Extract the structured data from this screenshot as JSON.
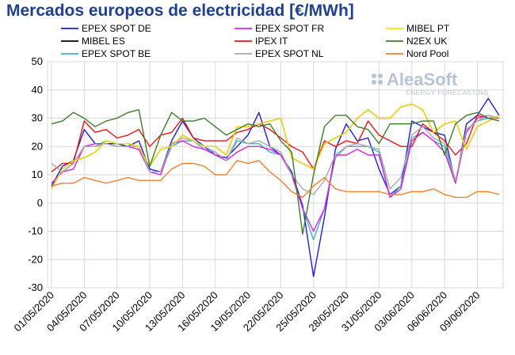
{
  "chart_data": {
    "type": "line",
    "title": "Mercados europeos de electricidad [€/MWh]",
    "xlabel": "",
    "ylabel": "",
    "ylim": [
      -30,
      50
    ],
    "yticks": [
      50,
      40,
      30,
      20,
      10,
      0,
      -10,
      -20,
      -30
    ],
    "grid": true,
    "legend_position": "top",
    "watermark": {
      "brand": "AleaSoft",
      "tagline": "ENERGY FORECASTING"
    },
    "x": [
      "01/05/2020",
      "02/05/2020",
      "03/05/2020",
      "04/05/2020",
      "05/05/2020",
      "06/05/2020",
      "07/05/2020",
      "08/05/2020",
      "09/05/2020",
      "10/05/2020",
      "11/05/2020",
      "12/05/2020",
      "13/05/2020",
      "14/05/2020",
      "15/05/2020",
      "16/05/2020",
      "17/05/2020",
      "18/05/2020",
      "19/05/2020",
      "20/05/2020",
      "21/05/2020",
      "22/05/2020",
      "23/05/2020",
      "24/05/2020",
      "25/05/2020",
      "26/05/2020",
      "27/05/2020",
      "28/05/2020",
      "29/05/2020",
      "30/05/2020",
      "31/05/2020",
      "01/06/2020",
      "02/06/2020",
      "03/06/2020",
      "04/06/2020",
      "05/06/2020",
      "06/06/2020",
      "07/06/2020",
      "08/06/2020",
      "09/06/2020",
      "10/06/2020",
      "11/06/2020"
    ],
    "xticks": [
      "01/05/2020",
      "04/05/2020",
      "07/05/2020",
      "10/05/2020",
      "13/05/2020",
      "16/05/2020",
      "19/05/2020",
      "22/05/2020",
      "25/05/2020",
      "28/05/2020",
      "31/05/2020",
      "03/06/2020",
      "06/06/2020",
      "09/06/2020"
    ],
    "series": [
      {
        "name": "EPEX SPOT DE",
        "color": "#1f1fd6",
        "values": [
          6,
          13,
          15,
          26,
          21,
          21,
          21,
          20,
          22,
          12,
          11,
          22,
          29,
          23,
          20,
          17,
          16,
          20,
          24,
          32,
          20,
          17,
          11,
          -1,
          -26,
          -5,
          19,
          28,
          22,
          23,
          12,
          3,
          6,
          29,
          27,
          25,
          24,
          7,
          28,
          31,
          37,
          31
        ]
      },
      {
        "name": "MIBEL ES",
        "color": "#000000",
        "values": [
          5,
          12,
          15,
          16,
          18,
          22,
          21,
          21,
          20,
          13,
          19,
          20,
          24,
          22,
          20,
          20,
          17,
          27,
          27,
          28,
          29,
          30,
          16,
          14,
          12,
          21,
          23,
          25,
          30,
          33,
          30,
          30,
          34,
          35,
          33,
          25,
          28,
          29,
          19,
          27,
          29,
          31
        ]
      },
      {
        "name": "EPEX SPOT BE",
        "color": "#3cb4c6",
        "values": [
          7,
          11,
          14,
          20,
          20,
          22,
          21,
          21,
          20,
          11,
          11,
          20,
          22,
          22,
          19,
          18,
          15,
          22,
          21,
          21,
          18,
          17,
          10,
          -2,
          -13,
          -2,
          16,
          20,
          20,
          20,
          18,
          2,
          6,
          23,
          25,
          22,
          20,
          7,
          26,
          29,
          30,
          30
        ]
      },
      {
        "name": "EPEX SPOT FR",
        "color": "#e020e0",
        "values": [
          7,
          11,
          12,
          20,
          21,
          21,
          20,
          20,
          19,
          11,
          10,
          21,
          22,
          20,
          19,
          17,
          15,
          18,
          20,
          20,
          19,
          17,
          10,
          -2,
          -10,
          -2,
          17,
          17,
          19,
          17,
          17,
          2,
          5,
          22,
          25,
          22,
          18,
          7,
          25,
          30,
          31,
          30
        ]
      },
      {
        "name": "IPEX IT",
        "color": "#e01818",
        "values": [
          11,
          14,
          14,
          29,
          25,
          26,
          23,
          24,
          26,
          20,
          24,
          25,
          30,
          23,
          22,
          22,
          22,
          25,
          26,
          28,
          26,
          23,
          20,
          18,
          12,
          22,
          20,
          22,
          21,
          29,
          24,
          22,
          20,
          20,
          28,
          25,
          22,
          17,
          21,
          31,
          30,
          30
        ]
      },
      {
        "name": "EPEX SPOT NL",
        "color": "#a8a8a8",
        "values": [
          14,
          11,
          14,
          20,
          20,
          21,
          20,
          20,
          20,
          11,
          11,
          21,
          23,
          22,
          20,
          18,
          15,
          23,
          21,
          22,
          20,
          18,
          10,
          5,
          3,
          8,
          17,
          20,
          21,
          20,
          19,
          5,
          9,
          24,
          27,
          23,
          21,
          8,
          26,
          29,
          31,
          30
        ]
      },
      {
        "name": "MIBEL PT",
        "color": "#ffe000",
        "values": [
          5,
          12,
          15,
          16,
          18,
          22,
          21,
          21,
          20,
          13,
          19,
          20,
          24,
          22,
          20,
          20,
          17,
          27,
          27,
          28,
          29,
          30,
          16,
          14,
          12,
          21,
          23,
          25,
          30,
          33,
          30,
          30,
          34,
          35,
          33,
          25,
          28,
          29,
          19,
          27,
          29,
          31
        ]
      },
      {
        "name": "N2EX UK",
        "color": "#3e7d2a",
        "values": [
          28,
          29,
          32,
          30,
          27,
          29,
          30,
          32,
          33,
          13,
          24,
          32,
          29,
          29,
          30,
          27,
          24,
          26,
          28,
          27,
          28,
          22,
          18,
          -11,
          10,
          27,
          31,
          31,
          27,
          26,
          21,
          28,
          28,
          28,
          29,
          29,
          17,
          28,
          31,
          32,
          30,
          29
        ]
      },
      {
        "name": "Nord Pool",
        "color": "#f08030",
        "values": [
          6,
          7,
          7,
          9,
          8,
          7,
          8,
          9,
          8,
          8,
          8,
          12,
          14,
          14,
          13,
          10,
          10,
          15,
          14,
          15,
          11,
          8,
          4,
          2,
          6,
          9,
          5,
          4,
          4,
          4,
          4,
          3,
          3,
          4,
          4,
          5,
          3,
          2,
          2,
          4,
          4,
          3
        ]
      }
    ]
  }
}
